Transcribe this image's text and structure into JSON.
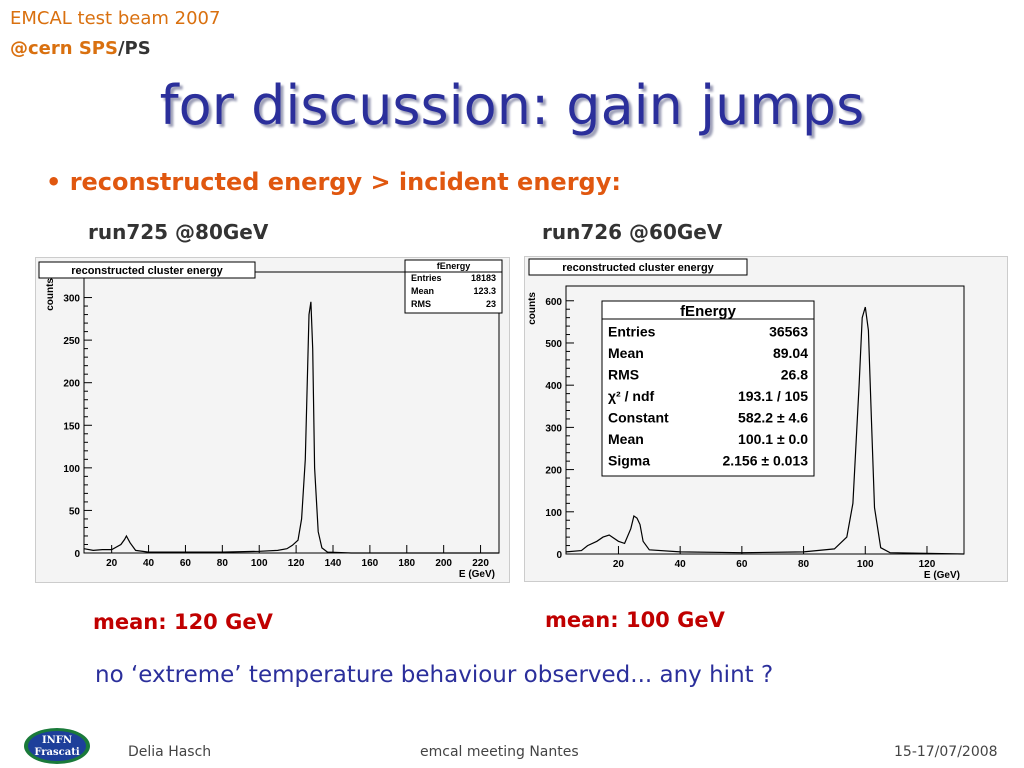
{
  "header": {
    "line1": "EMCAL test beam 2007",
    "line2_a": "@cern SPS",
    "line2_b": "/PS"
  },
  "title": "for discussion: gain jumps",
  "bullet": "• reconstructed energy > incident energy:",
  "runs": [
    {
      "label": "run725 @80GeV",
      "mean": "mean: 120 GeV"
    },
    {
      "label": "run726 @60GeV",
      "mean": "mean: 100 GeV"
    }
  ],
  "note": "no ‘extreme’ temperature behaviour observed...   any hint ?",
  "footer": {
    "author": "Delia Hasch",
    "meeting": "emcal meeting Nantes",
    "date": "15-17/07/2008",
    "logo_text": [
      "INFN",
      "Frascati"
    ]
  },
  "chart_data": [
    {
      "type": "histogram",
      "title": "reconstructed cluster energy",
      "xlabel": "E (GeV)",
      "ylabel": "counts",
      "xlim": [
        5,
        230
      ],
      "ylim": [
        0,
        330
      ],
      "xticks": [
        20,
        40,
        60,
        80,
        100,
        120,
        140,
        160,
        180,
        200,
        220
      ],
      "yticks": [
        0,
        50,
        100,
        150,
        200,
        250,
        300
      ],
      "stats": {
        "title": "fEnergy",
        "rows": [
          [
            "Entries",
            "18183"
          ],
          [
            "Mean",
            "123.3"
          ],
          [
            "RMS",
            "23"
          ]
        ]
      },
      "points": [
        [
          5,
          5
        ],
        [
          10,
          3
        ],
        [
          15,
          4
        ],
        [
          20,
          4
        ],
        [
          25,
          10
        ],
        [
          27,
          16
        ],
        [
          28,
          20
        ],
        [
          30,
          12
        ],
        [
          33,
          3
        ],
        [
          40,
          1
        ],
        [
          60,
          1
        ],
        [
          80,
          1
        ],
        [
          100,
          2
        ],
        [
          110,
          3
        ],
        [
          115,
          5
        ],
        [
          118,
          9
        ],
        [
          121,
          15
        ],
        [
          123,
          40
        ],
        [
          125,
          110
        ],
        [
          127,
          280
        ],
        [
          128,
          295
        ],
        [
          129,
          240
        ],
        [
          130,
          100
        ],
        [
          132,
          25
        ],
        [
          134,
          6
        ],
        [
          137,
          1
        ],
        [
          150,
          0
        ],
        [
          230,
          0
        ]
      ]
    },
    {
      "type": "histogram",
      "title": "reconstructed cluster energy",
      "xlabel": "E (GeV)",
      "ylabel": "counts",
      "xlim": [
        3,
        132
      ],
      "ylim": [
        0,
        635
      ],
      "xticks": [
        20,
        40,
        60,
        80,
        100,
        120
      ],
      "yticks": [
        0,
        100,
        200,
        300,
        400,
        500,
        600
      ],
      "stats": {
        "title": "fEnergy",
        "rows": [
          [
            "Entries",
            "36563"
          ],
          [
            "Mean",
            "89.04"
          ],
          [
            "RMS",
            "26.8"
          ],
          [
            "χ² / ndf",
            "193.1 / 105"
          ],
          [
            "Constant",
            "582.2 ± 4.6"
          ],
          [
            "Mean",
            "100.1 ± 0.0"
          ],
          [
            "Sigma",
            "2.156 ± 0.013"
          ]
        ]
      },
      "points": [
        [
          3,
          5
        ],
        [
          8,
          8
        ],
        [
          10,
          20
        ],
        [
          13,
          30
        ],
        [
          15,
          40
        ],
        [
          17,
          45
        ],
        [
          20,
          30
        ],
        [
          22,
          25
        ],
        [
          24,
          60
        ],
        [
          25,
          90
        ],
        [
          26,
          85
        ],
        [
          27,
          70
        ],
        [
          28,
          30
        ],
        [
          30,
          10
        ],
        [
          40,
          5
        ],
        [
          60,
          3
        ],
        [
          80,
          5
        ],
        [
          90,
          12
        ],
        [
          94,
          40
        ],
        [
          96,
          120
        ],
        [
          98,
          400
        ],
        [
          99,
          560
        ],
        [
          100,
          585
        ],
        [
          101,
          530
        ],
        [
          102,
          320
        ],
        [
          103,
          110
        ],
        [
          105,
          15
        ],
        [
          108,
          3
        ],
        [
          132,
          0
        ]
      ]
    }
  ]
}
